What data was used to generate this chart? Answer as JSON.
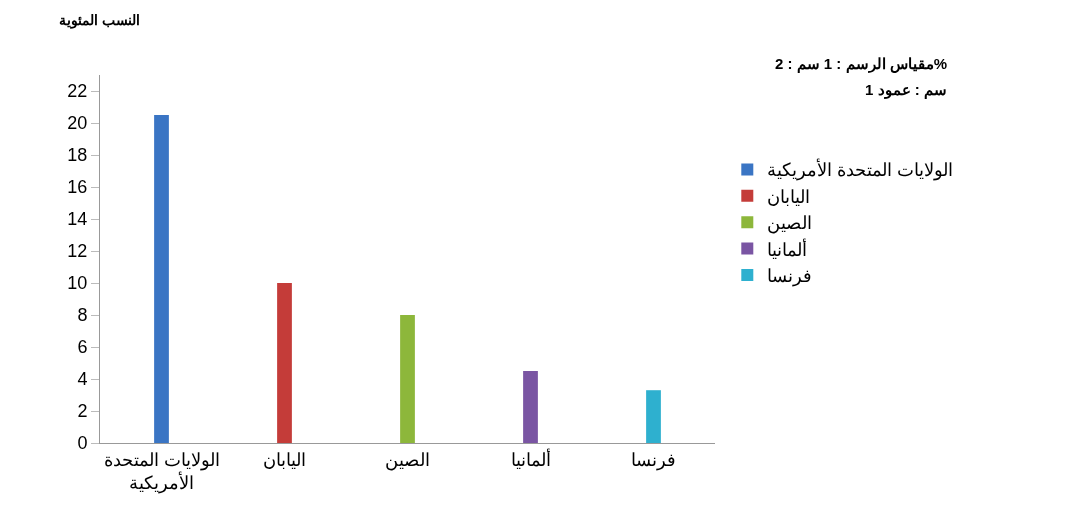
{
  "chart_data": {
    "type": "bar",
    "ylabel": "النسب المئوية",
    "categories": [
      "الولايات المتحدة الأمريكية",
      "اليابان",
      "الصين",
      "ألمانيا",
      "فرنسا"
    ],
    "series": [
      {
        "name": "الولايات المتحدة الأمريكية",
        "color": "#3a75c4",
        "values": [
          20.5,
          null,
          null,
          null,
          null
        ]
      },
      {
        "name": "اليابان",
        "color": "#c43c39",
        "values": [
          null,
          10,
          null,
          null,
          null
        ]
      },
      {
        "name": "الصين",
        "color": "#8db73b",
        "values": [
          null,
          null,
          8,
          null,
          null
        ]
      },
      {
        "name": "ألمانيا",
        "color": "#7a55a3",
        "values": [
          null,
          null,
          null,
          4.5,
          null
        ]
      },
      {
        "name": "فرنسا",
        "color": "#2eb0cf",
        "values": [
          null,
          null,
          null,
          null,
          3.3
        ]
      }
    ],
    "ylim": [
      0,
      23
    ],
    "yticks": [
      0,
      2,
      4,
      6,
      8,
      10,
      12,
      14,
      16,
      18,
      20,
      22
    ],
    "grid": false,
    "legend": "right",
    "annotations": [
      "مقياس الرسم : 1 سم : 2%",
      "1 سم : عمود"
    ]
  }
}
